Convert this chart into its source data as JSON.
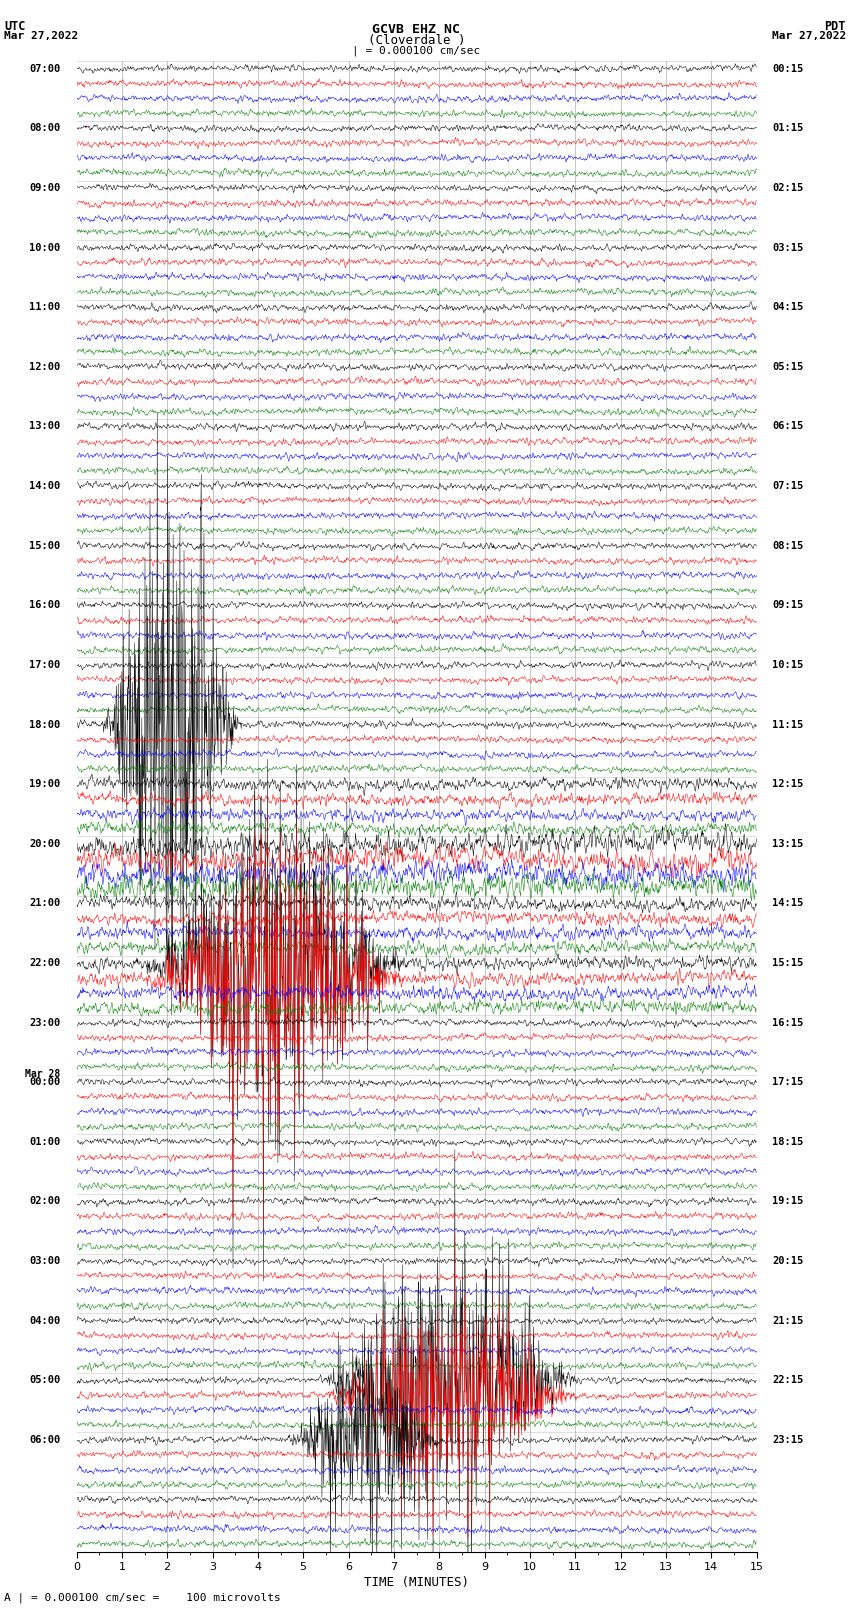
{
  "title_line1": "GCVB EHZ NC",
  "title_line2": "(Cloverdale )",
  "scale_text": "| = 0.000100 cm/sec",
  "footer_text": "A | = 0.000100 cm/sec =    100 microvolts",
  "utc_label": "UTC",
  "utc_date": "Mar 27,2022",
  "pdt_label": "PDT",
  "pdt_date": "Mar 27,2022",
  "xlabel": "TIME (MINUTES)",
  "xlim": [
    0,
    15
  ],
  "xticks": [
    0,
    1,
    2,
    3,
    4,
    5,
    6,
    7,
    8,
    9,
    10,
    11,
    12,
    13,
    14,
    15
  ],
  "bg_color": "#ffffff",
  "trace_colors": [
    "black",
    "red",
    "blue",
    "green"
  ],
  "left_times": [
    "07:00",
    "08:00",
    "09:00",
    "10:00",
    "11:00",
    "12:00",
    "13:00",
    "14:00",
    "15:00",
    "16:00",
    "17:00",
    "18:00",
    "19:00",
    "20:00",
    "21:00",
    "22:00",
    "23:00",
    "Mar 28\n00:00",
    "01:00",
    "02:00",
    "03:00",
    "04:00",
    "05:00",
    "06:00",
    ""
  ],
  "right_times": [
    "00:15",
    "01:15",
    "02:15",
    "03:15",
    "04:15",
    "05:15",
    "06:15",
    "07:15",
    "08:15",
    "09:15",
    "10:15",
    "11:15",
    "12:15",
    "13:15",
    "14:15",
    "15:15",
    "16:15",
    "17:15",
    "18:15",
    "19:15",
    "20:15",
    "21:15",
    "22:15",
    "23:15"
  ],
  "n_groups": 25,
  "traces_per_group": 4,
  "noise_seed": 42,
  "vertical_lines_x": [
    1,
    2,
    3,
    4,
    5,
    6,
    7,
    8,
    9,
    10,
    11,
    12,
    13,
    14
  ],
  "grid_color": "#777777",
  "trace_amplitude": 0.32,
  "n_points": 1500
}
